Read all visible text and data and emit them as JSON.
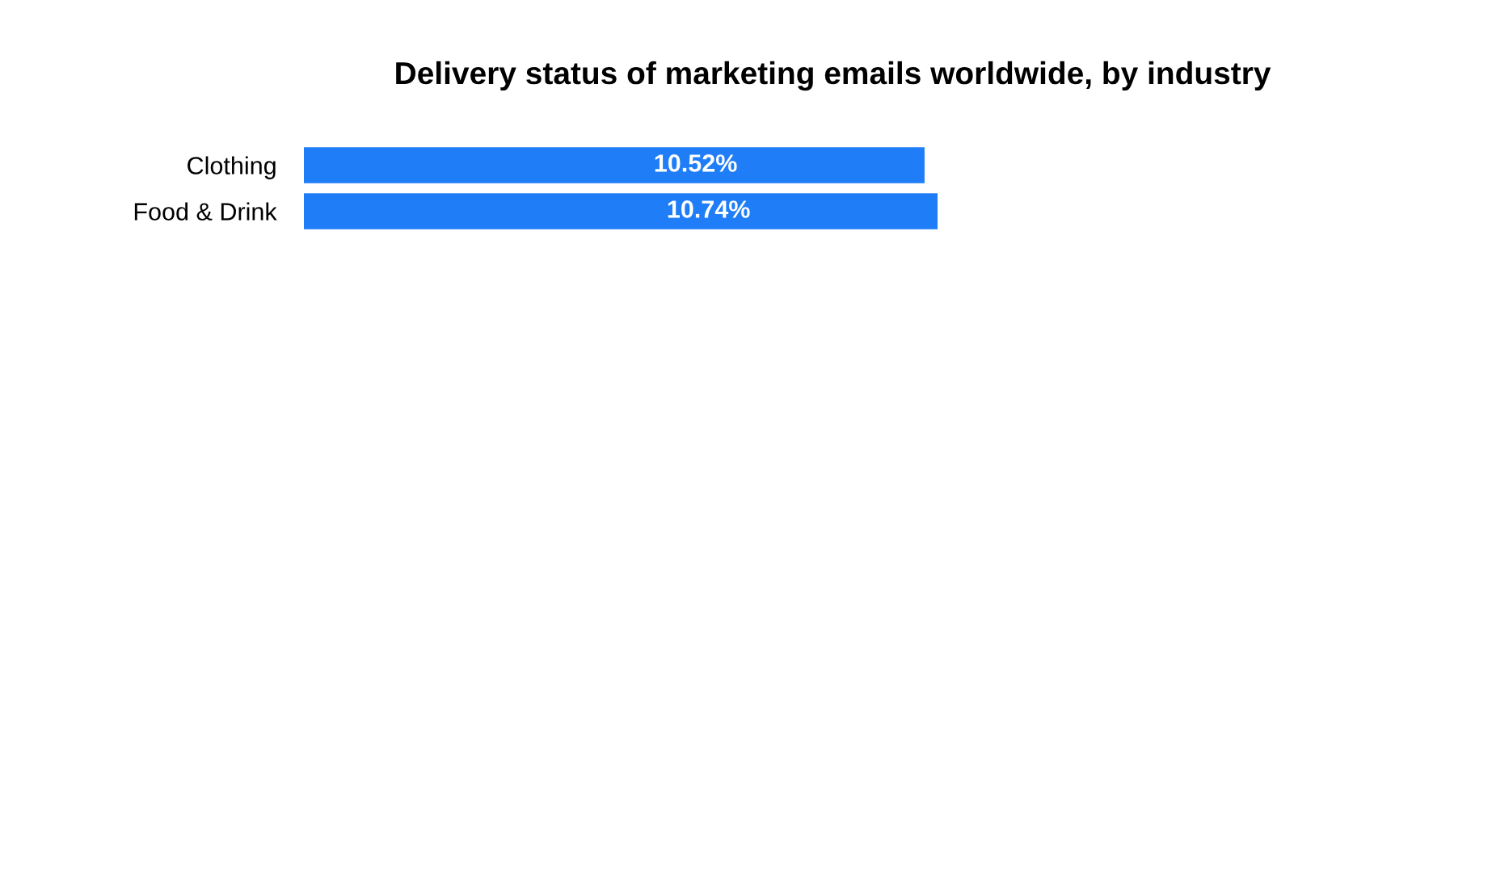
{
  "chart_data": {
    "type": "bar",
    "orientation": "horizontal",
    "title": "Delivery status of marketing emails worldwide, by industry",
    "categories": [
      "Clothing",
      "Food & Drink"
    ],
    "values": [
      10.52,
      10.74
    ],
    "color": "#1f7ef7",
    "value_labels": [
      "10.52%",
      "10.74%"
    ],
    "tick_labels": "y"
  }
}
